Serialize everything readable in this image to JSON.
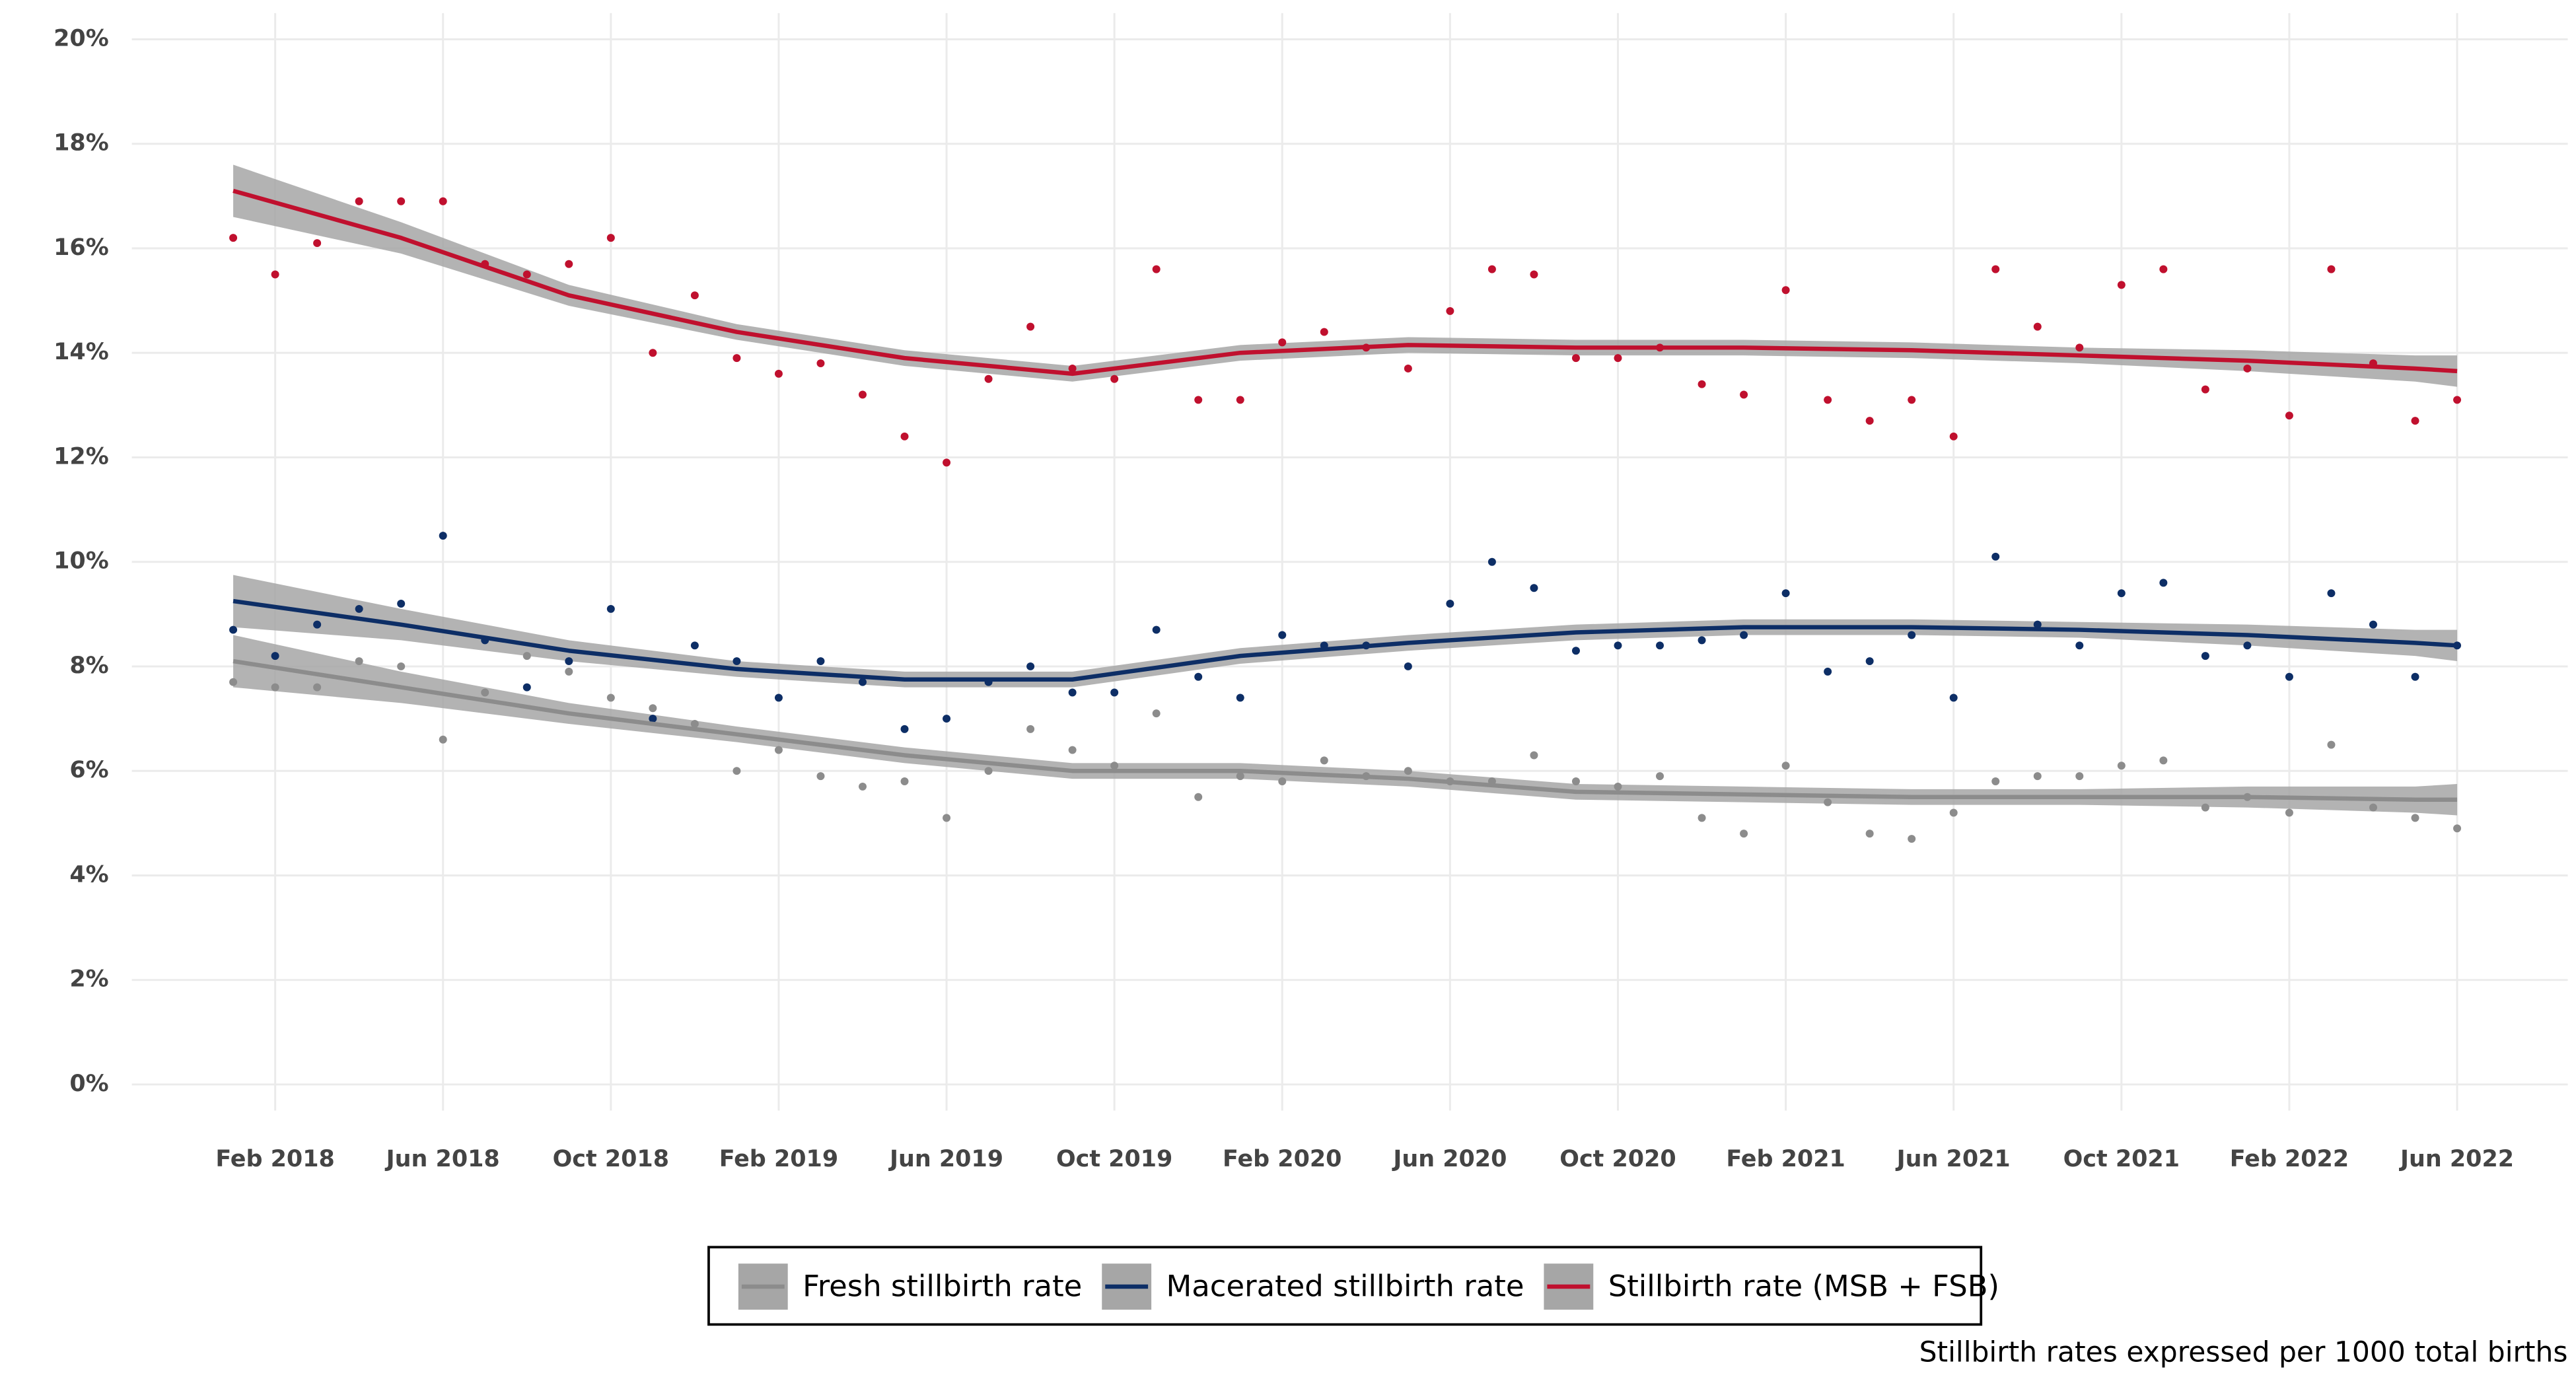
{
  "chart_data": {
    "type": "scatter-smooth",
    "x": [
      "2018-01",
      "2018-02",
      "2018-03",
      "2018-04",
      "2018-05",
      "2018-06",
      "2018-07",
      "2018-08",
      "2018-09",
      "2018-10",
      "2018-11",
      "2018-12",
      "2019-01",
      "2019-02",
      "2019-03",
      "2019-04",
      "2019-05",
      "2019-06",
      "2019-07",
      "2019-08",
      "2019-09",
      "2019-10",
      "2019-11",
      "2019-12",
      "2020-01",
      "2020-02",
      "2020-03",
      "2020-04",
      "2020-05",
      "2020-06",
      "2020-07",
      "2020-08",
      "2020-09",
      "2020-10",
      "2020-11",
      "2020-12",
      "2021-01",
      "2021-02",
      "2021-03",
      "2021-04",
      "2021-05",
      "2021-06",
      "2021-07",
      "2021-08",
      "2021-09",
      "2021-10",
      "2021-11",
      "2021-12",
      "2022-01",
      "2022-02",
      "2022-03",
      "2022-04",
      "2022-05",
      "2022-06"
    ],
    "trend_x": [
      "2018-01",
      "2018-05",
      "2018-09",
      "2019-01",
      "2019-05",
      "2019-09",
      "2020-01",
      "2020-05",
      "2020-09",
      "2021-01",
      "2021-05",
      "2021-09",
      "2022-01",
      "2022-05",
      "2022-06"
    ],
    "trend_band": [
      0.5,
      0.3,
      0.2,
      0.15,
      0.15,
      0.15,
      0.15,
      0.15,
      0.15,
      0.15,
      0.15,
      0.15,
      0.2,
      0.25,
      0.3
    ],
    "band_color": "#a6a6a6",
    "series": [
      {
        "name": "Fresh stillbirth rate",
        "color": "#8c8c8c",
        "values": [
          7.7,
          7.6,
          7.6,
          8.1,
          8.0,
          6.6,
          7.5,
          8.2,
          7.9,
          7.4,
          7.2,
          6.9,
          6.0,
          6.4,
          5.9,
          5.7,
          5.8,
          5.1,
          6.0,
          6.8,
          6.4,
          6.1,
          7.1,
          5.5,
          5.9,
          5.8,
          6.2,
          5.9,
          6.0,
          5.8,
          5.8,
          6.3,
          5.8,
          5.7,
          5.9,
          5.1,
          4.8,
          6.1,
          5.4,
          4.8,
          4.7,
          5.2,
          5.8,
          5.9,
          5.9,
          6.1,
          6.2,
          5.3,
          5.5,
          5.2,
          6.5,
          5.3,
          5.1,
          4.9
        ],
        "trend": [
          8.1,
          7.6,
          7.1,
          6.7,
          6.3,
          6.0,
          6.0,
          5.85,
          5.6,
          5.55,
          5.5,
          5.5,
          5.5,
          5.45,
          5.45
        ]
      },
      {
        "name": "Macerated stillbirth rate",
        "color": "#0d2e66",
        "values": [
          8.7,
          8.2,
          8.8,
          9.1,
          9.2,
          10.5,
          8.5,
          7.6,
          8.1,
          9.1,
          7.0,
          8.4,
          8.1,
          7.4,
          8.1,
          7.7,
          6.8,
          7.0,
          7.7,
          8.0,
          7.5,
          7.5,
          8.7,
          7.8,
          7.4,
          8.6,
          8.4,
          8.4,
          8.0,
          9.2,
          10.0,
          9.5,
          8.3,
          8.4,
          8.4,
          8.5,
          8.6,
          9.4,
          7.9,
          8.1,
          8.6,
          7.4,
          10.1,
          8.8,
          8.4,
          9.4,
          9.6,
          8.2,
          8.4,
          7.8,
          9.4,
          8.8,
          7.8,
          8.4
        ],
        "trend": [
          9.25,
          8.8,
          8.3,
          7.95,
          7.75,
          7.75,
          8.2,
          8.45,
          8.65,
          8.75,
          8.75,
          8.7,
          8.6,
          8.45,
          8.4
        ]
      },
      {
        "name": "Stillbirth rate (MSB + FSB)",
        "color": "#c0102e",
        "values": [
          16.2,
          15.5,
          16.1,
          16.9,
          16.9,
          16.9,
          15.7,
          15.5,
          15.7,
          16.2,
          14.0,
          15.1,
          13.9,
          13.6,
          13.8,
          13.2,
          12.4,
          11.9,
          13.5,
          14.5,
          13.7,
          13.5,
          15.6,
          13.1,
          13.1,
          14.2,
          14.4,
          14.1,
          13.7,
          14.8,
          15.6,
          15.5,
          13.9,
          13.9,
          14.1,
          13.4,
          13.2,
          15.2,
          13.1,
          12.7,
          13.1,
          12.4,
          15.6,
          14.5,
          14.1,
          15.3,
          15.6,
          13.3,
          13.7,
          12.8,
          15.6,
          13.8,
          12.7,
          13.1
        ],
        "trend": [
          17.1,
          16.2,
          15.1,
          14.4,
          13.9,
          13.6,
          14.0,
          14.15,
          14.1,
          14.1,
          14.05,
          13.95,
          13.85,
          13.7,
          13.65
        ]
      }
    ],
    "ylim": [
      -0.5,
      20.5
    ],
    "yticks": [
      {
        "value": 0,
        "label": "0%"
      },
      {
        "value": 2,
        "label": "2%"
      },
      {
        "value": 4,
        "label": "4%"
      },
      {
        "value": 6,
        "label": "6%"
      },
      {
        "value": 8,
        "label": "8%"
      },
      {
        "value": 10,
        "label": "10%"
      },
      {
        "value": 12,
        "label": "12%"
      },
      {
        "value": 14,
        "label": "14%"
      },
      {
        "value": 16,
        "label": "16%"
      },
      {
        "value": 18,
        "label": "18%"
      },
      {
        "value": 20,
        "label": "20%"
      }
    ],
    "xticks": [
      {
        "value": "2018-02",
        "label": "Feb 2018"
      },
      {
        "value": "2018-06",
        "label": "Jun 2018"
      },
      {
        "value": "2018-10",
        "label": "Oct 2018"
      },
      {
        "value": "2019-02",
        "label": "Feb 2019"
      },
      {
        "value": "2019-06",
        "label": "Jun 2019"
      },
      {
        "value": "2019-10",
        "label": "Oct 2019"
      },
      {
        "value": "2020-02",
        "label": "Feb 2020"
      },
      {
        "value": "2020-06",
        "label": "Jun 2020"
      },
      {
        "value": "2020-10",
        "label": "Oct 2020"
      },
      {
        "value": "2021-02",
        "label": "Feb 2021"
      },
      {
        "value": "2021-06",
        "label": "Jun 2021"
      },
      {
        "value": "2021-10",
        "label": "Oct 2021"
      },
      {
        "value": "2022-02",
        "label": "Feb 2022"
      },
      {
        "value": "2022-06",
        "label": "Jun 2022"
      }
    ],
    "grid": true,
    "legend": "bottom",
    "caption": "Stillbirth rates expressed per 1000 total births"
  }
}
